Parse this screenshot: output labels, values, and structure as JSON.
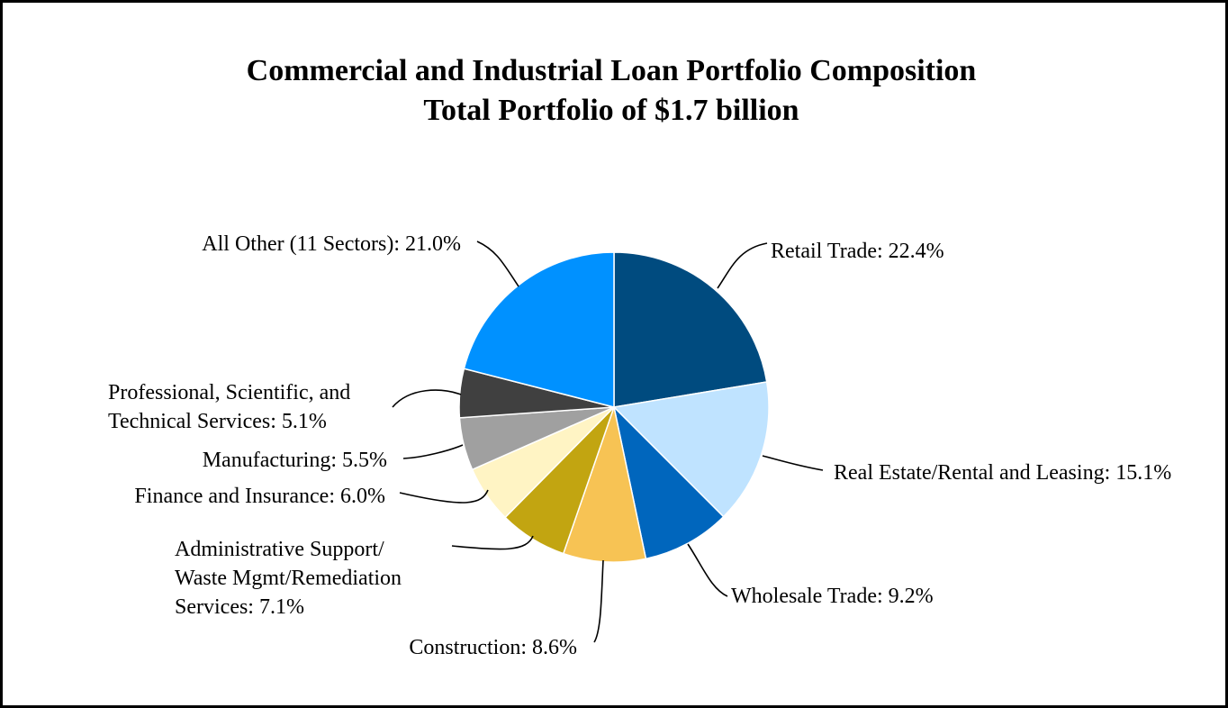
{
  "chart_data": {
    "type": "pie",
    "title": "Commercial and Industrial Loan Portfolio Composition",
    "subtitle": "Total Portfolio of $1.7 billion",
    "slices": [
      {
        "label_lines": [
          "Retail Trade: 22.4%"
        ],
        "value": 22.4,
        "color": "#004b7f"
      },
      {
        "label_lines": [
          "Real Estate/Rental and Leasing: 15.1%"
        ],
        "value": 15.1,
        "color": "#bfe3ff"
      },
      {
        "label_lines": [
          "Wholesale Trade: 9.2%"
        ],
        "value": 9.2,
        "color": "#0066bd"
      },
      {
        "label_lines": [
          "Construction: 8.6%"
        ],
        "value": 8.6,
        "color": "#f7c354"
      },
      {
        "label_lines": [
          "Administrative Support/",
          "Waste Mgmt/Remediation",
          "Services: 7.1%"
        ],
        "value": 7.1,
        "color": "#c2a511"
      },
      {
        "label_lines": [
          "Finance and Insurance: 6.0%"
        ],
        "value": 6.0,
        "color": "#fff4c4"
      },
      {
        "label_lines": [
          "Manufacturing: 5.5%"
        ],
        "value": 5.5,
        "color": "#a0a0a0"
      },
      {
        "label_lines": [
          "Professional, Scientific, and",
          "Technical Services: 5.1%"
        ],
        "value": 5.1,
        "color": "#404040"
      },
      {
        "label_lines": [
          "All Other (11 Sectors): 21.0%"
        ],
        "value": 21.0,
        "color": "#0091ff"
      }
    ],
    "legend": "none"
  }
}
